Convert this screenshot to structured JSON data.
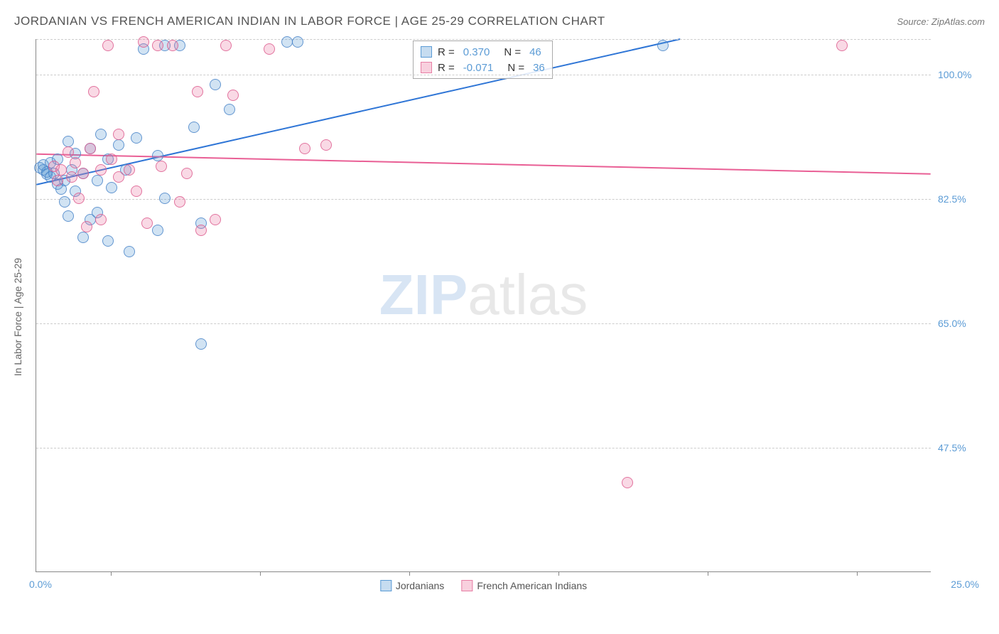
{
  "title": "JORDANIAN VS FRENCH AMERICAN INDIAN IN LABOR FORCE | AGE 25-29 CORRELATION CHART",
  "source": "Source: ZipAtlas.com",
  "y_axis_label": "In Labor Force | Age 25-29",
  "watermark_zip": "ZIP",
  "watermark_atlas": "atlas",
  "chart": {
    "type": "scatter",
    "xlim": [
      0,
      25
    ],
    "ylim": [
      30,
      105
    ],
    "x_min_label": "0.0%",
    "x_max_label": "25.0%",
    "x_tick_positions": [
      2.08,
      6.25,
      10.42,
      14.58,
      18.75,
      22.92
    ],
    "y_gridlines": [
      {
        "value": 47.5,
        "label": "47.5%"
      },
      {
        "value": 65.0,
        "label": "65.0%"
      },
      {
        "value": 82.5,
        "label": "82.5%"
      },
      {
        "value": 100.0,
        "label": "100.0%"
      },
      {
        "value": 105.0,
        "label": ""
      }
    ],
    "grid_color": "#cccccc",
    "border_color": "#888888",
    "marker_radius": 8,
    "series": [
      {
        "name": "Jordanians",
        "color_fill": "rgba(91,155,213,0.28)",
        "color_stroke": "#5b9bd5",
        "R": "0.370",
        "N": "46",
        "trendline": {
          "x1": 0,
          "y1": 84.5,
          "x2": 18.0,
          "y2": 105.0,
          "color": "#2e75d6",
          "width": 2
        },
        "points": [
          [
            0.1,
            86.8
          ],
          [
            0.2,
            86.5
          ],
          [
            0.2,
            87.2
          ],
          [
            0.3,
            85.9
          ],
          [
            0.3,
            86.2
          ],
          [
            0.4,
            85.5
          ],
          [
            0.4,
            87.5
          ],
          [
            0.5,
            86.0
          ],
          [
            0.6,
            84.5
          ],
          [
            0.6,
            88.0
          ],
          [
            0.7,
            83.8
          ],
          [
            0.8,
            85.0
          ],
          [
            0.8,
            82.0
          ],
          [
            0.9,
            90.5
          ],
          [
            0.9,
            80.0
          ],
          [
            1.0,
            86.5
          ],
          [
            1.1,
            88.8
          ],
          [
            1.1,
            83.5
          ],
          [
            1.3,
            86.0
          ],
          [
            1.3,
            77.0
          ],
          [
            1.5,
            79.5
          ],
          [
            1.5,
            89.5
          ],
          [
            1.7,
            85.0
          ],
          [
            1.7,
            80.5
          ],
          [
            1.8,
            91.5
          ],
          [
            2.0,
            88.0
          ],
          [
            2.0,
            76.5
          ],
          [
            2.1,
            84.0
          ],
          [
            2.3,
            90.0
          ],
          [
            2.5,
            86.5
          ],
          [
            2.6,
            75.0
          ],
          [
            2.8,
            91.0
          ],
          [
            3.0,
            103.5
          ],
          [
            3.4,
            88.5
          ],
          [
            3.4,
            78.0
          ],
          [
            3.6,
            104.0
          ],
          [
            3.6,
            82.5
          ],
          [
            4.0,
            104.0
          ],
          [
            4.4,
            92.5
          ],
          [
            4.6,
            79.0
          ],
          [
            4.6,
            62.0
          ],
          [
            5.0,
            98.5
          ],
          [
            5.4,
            95.0
          ],
          [
            7.0,
            104.5
          ],
          [
            7.3,
            104.5
          ],
          [
            17.5,
            104.0
          ]
        ]
      },
      {
        "name": "French American Indians",
        "color_fill": "rgba(235,120,160,0.28)",
        "color_stroke": "#e77fa5",
        "R": "-0.071",
        "N": "36",
        "trendline": {
          "x1": 0,
          "y1": 88.8,
          "x2": 25.0,
          "y2": 86.0,
          "color": "#e95f95",
          "width": 2
        },
        "points": [
          [
            0.5,
            87.0
          ],
          [
            0.6,
            85.0
          ],
          [
            0.7,
            86.5
          ],
          [
            0.9,
            89.0
          ],
          [
            1.0,
            85.5
          ],
          [
            1.1,
            87.5
          ],
          [
            1.2,
            82.5
          ],
          [
            1.3,
            86.0
          ],
          [
            1.4,
            78.5
          ],
          [
            1.5,
            89.5
          ],
          [
            1.6,
            97.5
          ],
          [
            1.8,
            86.5
          ],
          [
            1.8,
            79.5
          ],
          [
            2.0,
            104.0
          ],
          [
            2.1,
            88.0
          ],
          [
            2.3,
            85.5
          ],
          [
            2.3,
            91.5
          ],
          [
            2.6,
            86.5
          ],
          [
            2.8,
            83.5
          ],
          [
            3.0,
            104.5
          ],
          [
            3.1,
            79.0
          ],
          [
            3.4,
            104.0
          ],
          [
            3.5,
            87.0
          ],
          [
            3.8,
            104.0
          ],
          [
            4.0,
            82.0
          ],
          [
            4.2,
            86.0
          ],
          [
            4.5,
            97.5
          ],
          [
            4.6,
            78.0
          ],
          [
            5.0,
            79.5
          ],
          [
            5.3,
            104.0
          ],
          [
            5.5,
            97.0
          ],
          [
            6.5,
            103.5
          ],
          [
            7.5,
            89.5
          ],
          [
            8.1,
            90.0
          ],
          [
            16.5,
            42.5
          ],
          [
            22.5,
            104.0
          ]
        ]
      }
    ],
    "legend_box": {
      "rows": [
        {
          "swatch": "blue",
          "text_R": "R =",
          "val_R": "0.370",
          "text_N": "N =",
          "val_N": "46"
        },
        {
          "swatch": "pink",
          "text_R": "R =",
          "val_R": "-0.071",
          "text_N": "N =",
          "val_N": "36"
        }
      ]
    },
    "bottom_legend": [
      {
        "swatch": "blue",
        "label": "Jordanians"
      },
      {
        "swatch": "pink",
        "label": "French American Indians"
      }
    ]
  }
}
